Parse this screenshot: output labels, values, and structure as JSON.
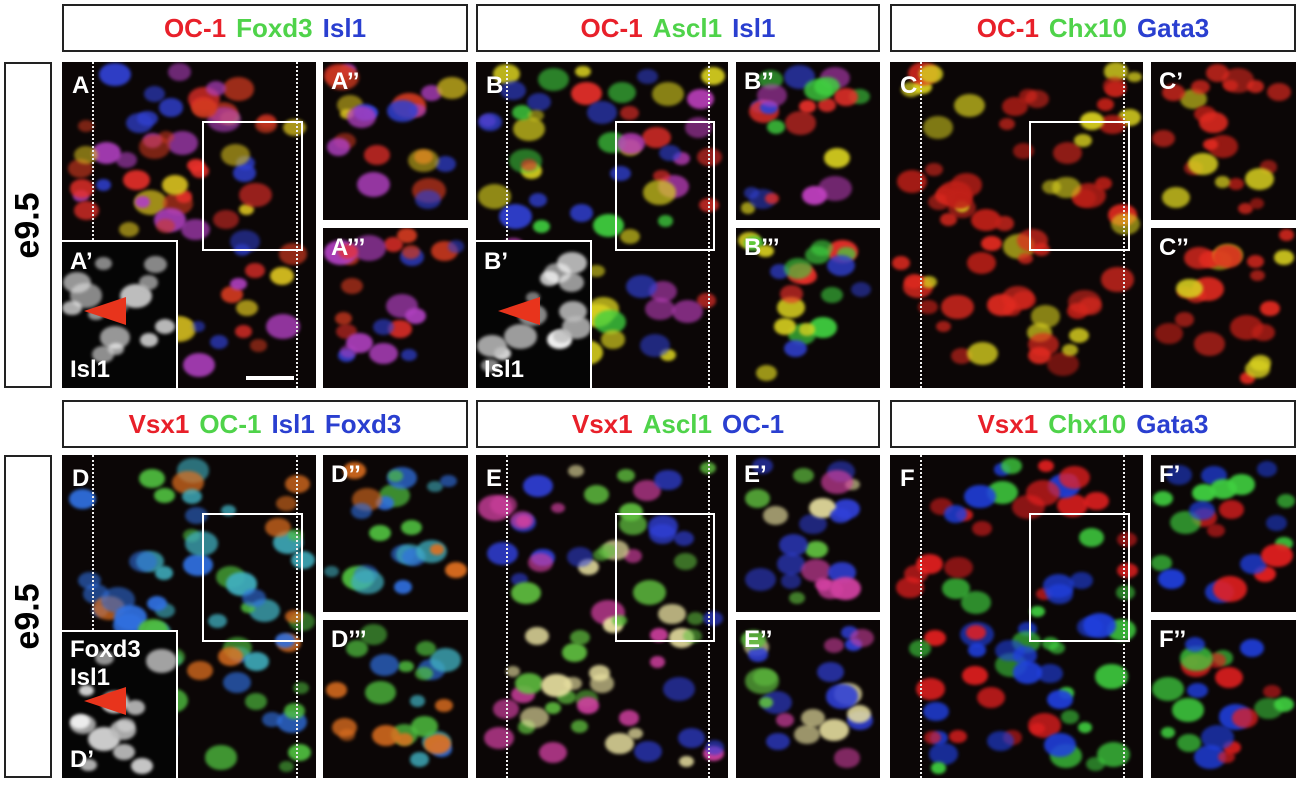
{
  "rows": [
    {
      "label": "e9.5",
      "groups": [
        {
          "header": [
            {
              "text": "OC-1",
              "color": "#e8202a"
            },
            {
              "text": "Foxd3",
              "color": "#4fd34a"
            },
            {
              "text": "Isl1",
              "color": "#2a3fd0"
            }
          ],
          "main": "A",
          "inset": {
            "letter": "A’",
            "text": [
              "Isl1"
            ]
          },
          "top": "A’’",
          "bottom": "A’’’"
        },
        {
          "header": [
            {
              "text": "OC-1",
              "color": "#e8202a"
            },
            {
              "text": "Ascl1",
              "color": "#4fd34a"
            },
            {
              "text": "Isl1",
              "color": "#2a3fd0"
            }
          ],
          "main": "B",
          "inset": {
            "letter": "B’",
            "text": [
              "Isl1"
            ]
          },
          "top": "B’’",
          "bottom": "B’’’"
        },
        {
          "header": [
            {
              "text": "OC-1",
              "color": "#e8202a"
            },
            {
              "text": "Chx10",
              "color": "#4fd34a"
            },
            {
              "text": "Gata3",
              "color": "#2a3fd0"
            }
          ],
          "main": "C",
          "top": "C’",
          "bottom": "C’’"
        }
      ]
    },
    {
      "label": "e9.5",
      "groups": [
        {
          "header": [
            {
              "text": "Vsx1",
              "color": "#e8202a"
            },
            {
              "text": "OC-1",
              "color": "#4fd34a"
            },
            {
              "text": "Isl1",
              "color": "#2a3fd0"
            },
            {
              "text": "Foxd3",
              "color": "#2a3fd0"
            }
          ],
          "main": "D",
          "inset": {
            "letter": "D’",
            "text": [
              "Foxd3",
              "Isl1"
            ]
          },
          "top": "D’’",
          "bottom": "D’’’"
        },
        {
          "header": [
            {
              "text": "Vsx1",
              "color": "#e8202a"
            },
            {
              "text": "Ascl1",
              "color": "#4fd34a"
            },
            {
              "text": "OC-1",
              "color": "#2a3fd0"
            }
          ],
          "main": "E",
          "top": "E’",
          "bottom": "E’’"
        },
        {
          "header": [
            {
              "text": "Vsx1",
              "color": "#e8202a"
            },
            {
              "text": "Chx10",
              "color": "#4fd34a"
            },
            {
              "text": "Gata3",
              "color": "#2a3fd0"
            }
          ],
          "main": "F",
          "top": "F’",
          "bottom": "F’’"
        }
      ]
    }
  ]
}
